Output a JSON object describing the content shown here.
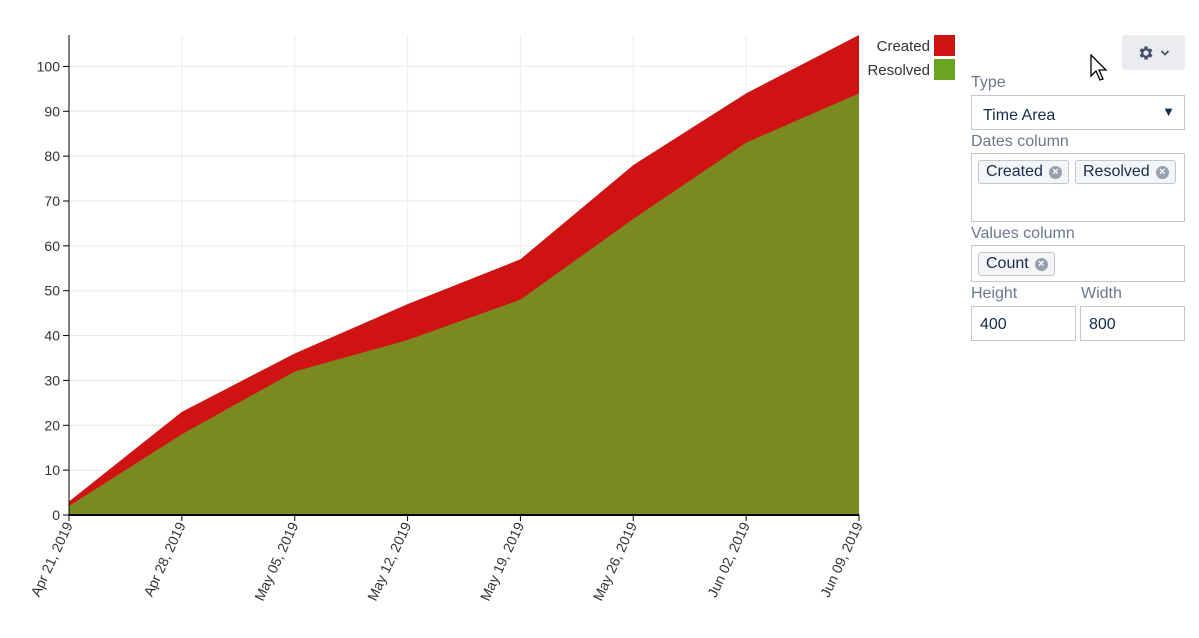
{
  "chart_data": {
    "type": "area",
    "x": [
      "Apr 21, 2019",
      "Apr 28, 2019",
      "May 05, 2019",
      "May 12, 2019",
      "May 19, 2019",
      "May 26, 2019",
      "Jun 02, 2019",
      "Jun 09, 2019"
    ],
    "series": [
      {
        "name": "Created",
        "values": [
          3,
          23,
          36,
          47,
          57,
          78,
          94,
          107
        ],
        "color": "#cf1313"
      },
      {
        "name": "Resolved",
        "values": [
          2,
          18,
          32,
          39,
          48,
          66,
          83,
          94
        ],
        "color": "#6aa521",
        "overlap_color": "#7a8a21"
      }
    ],
    "yticks": [
      0,
      10,
      20,
      30,
      40,
      50,
      60,
      70,
      80,
      90,
      100
    ],
    "ylim": [
      0,
      107
    ],
    "grid": true,
    "legend_position": "top-right"
  },
  "settings": {
    "gear_icon": "gear-icon",
    "dropdown_icon": "chevron-down-icon",
    "type_label": "Type",
    "type_value": "Time Area",
    "dates_column_label": "Dates column",
    "dates_columns": [
      "Created",
      "Resolved"
    ],
    "values_column_label": "Values column",
    "values_columns": [
      "Count"
    ],
    "height_label": "Height",
    "height_value": "400",
    "width_label": "Width",
    "width_value": "800"
  }
}
